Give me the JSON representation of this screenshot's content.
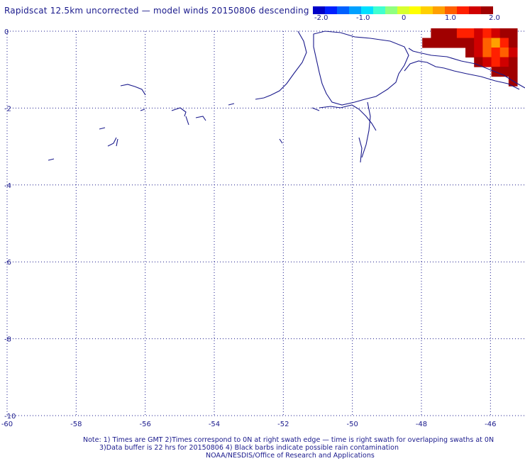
{
  "title": "Rapidscat 12.5km uncorrected — model winds 20150806 descending",
  "colorbar": {
    "labels": [
      "-2.0",
      "-1.0",
      "0",
      "1.0",
      "2.0"
    ],
    "colors": [
      "#0000c8",
      "#0020ff",
      "#0060ff",
      "#00a0ff",
      "#00e0ff",
      "#40ffd0",
      "#90ff80",
      "#d8ff30",
      "#ffff00",
      "#ffd000",
      "#ffa000",
      "#ff6000",
      "#ff2000",
      "#d00000",
      "#a00000"
    ]
  },
  "map": {
    "x_ticks": [
      "-60",
      "-58",
      "-56",
      "-54",
      "-52",
      "-50",
      "-48",
      "-46"
    ],
    "y_ticks": [
      "0",
      "-2",
      "-4",
      "-6",
      "-8",
      "-10"
    ],
    "lon_range": [
      -60,
      -45
    ],
    "lat_range": [
      0,
      -10
    ],
    "grid": true,
    "coast_color": "#1a1a8c",
    "cells": [
      {
        "lon": -47.6,
        "lat": -0.05,
        "v": 2.0
      },
      {
        "lon": -47.35,
        "lat": -0.05,
        "v": 2.0
      },
      {
        "lon": -47.1,
        "lat": -0.05,
        "v": 1.8
      },
      {
        "lon": -46.85,
        "lat": -0.05,
        "v": 1.4
      },
      {
        "lon": -46.6,
        "lat": -0.05,
        "v": 1.2
      },
      {
        "lon": -46.35,
        "lat": -0.05,
        "v": 1.5
      },
      {
        "lon": -46.1,
        "lat": -0.05,
        "v": 1.3
      },
      {
        "lon": -45.85,
        "lat": -0.05,
        "v": 1.6
      },
      {
        "lon": -45.6,
        "lat": -0.05,
        "v": 1.8
      },
      {
        "lon": -45.35,
        "lat": -0.05,
        "v": 2.0
      },
      {
        "lon": -47.85,
        "lat": -0.3,
        "v": 2.0
      },
      {
        "lon": -47.6,
        "lat": -0.3,
        "v": 2.0
      },
      {
        "lon": -47.35,
        "lat": -0.3,
        "v": 2.0
      },
      {
        "lon": -47.1,
        "lat": -0.3,
        "v": 2.0
      },
      {
        "lon": -46.85,
        "lat": -0.3,
        "v": 2.0
      },
      {
        "lon": -46.6,
        "lat": -0.3,
        "v": 1.8
      },
      {
        "lon": -46.35,
        "lat": -0.3,
        "v": 1.5
      },
      {
        "lon": -46.1,
        "lat": -0.3,
        "v": 1.1
      },
      {
        "lon": -45.85,
        "lat": -0.3,
        "v": 0.9
      },
      {
        "lon": -45.6,
        "lat": -0.3,
        "v": 1.4
      },
      {
        "lon": -45.35,
        "lat": -0.3,
        "v": 2.0
      },
      {
        "lon": -46.6,
        "lat": -0.55,
        "v": 2.0
      },
      {
        "lon": -46.35,
        "lat": -0.55,
        "v": 1.7
      },
      {
        "lon": -46.1,
        "lat": -0.55,
        "v": 1.0
      },
      {
        "lon": -45.85,
        "lat": -0.55,
        "v": 1.3
      },
      {
        "lon": -45.6,
        "lat": -0.55,
        "v": 1.1
      },
      {
        "lon": -45.35,
        "lat": -0.55,
        "v": 1.6
      },
      {
        "lon": -46.35,
        "lat": -0.8,
        "v": 2.0
      },
      {
        "lon": -46.1,
        "lat": -0.8,
        "v": 1.6
      },
      {
        "lon": -45.85,
        "lat": -0.8,
        "v": 1.4
      },
      {
        "lon": -45.6,
        "lat": -0.8,
        "v": 1.5
      },
      {
        "lon": -45.35,
        "lat": -0.8,
        "v": 1.8
      },
      {
        "lon": -45.85,
        "lat": -1.05,
        "v": 2.0
      },
      {
        "lon": -45.6,
        "lat": -1.05,
        "v": 2.0
      },
      {
        "lon": -45.35,
        "lat": -1.05,
        "v": 2.0
      },
      {
        "lon": -45.35,
        "lat": -1.3,
        "v": 2.0
      }
    ]
  },
  "notes": [
    "Note: 1) Times are GMT 2)Times correspond to 0N at right swath edge — time is right swath for overlapping swaths at 0N",
    "3)Data buffer is 22 hrs for 20150806 4) Black barbs indicate possible rain contamination",
    "NOAA/NESDIS/Office of Research and Applications"
  ]
}
